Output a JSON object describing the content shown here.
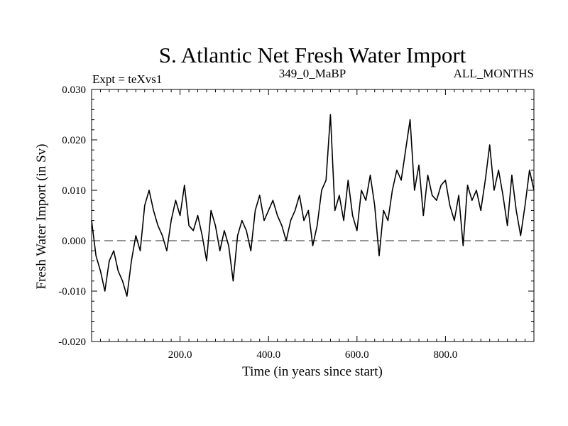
{
  "chart_data": {
    "type": "line",
    "title": "S. Atlantic Net Fresh Water Import",
    "subtitle_left": "Expt = teXvs1",
    "subtitle_center": "349_0_MaBP",
    "subtitle_right": "ALL_MONTHS",
    "xlabel": "Time (in years since start)",
    "ylabel": "Fresh Water Import (in Sv)",
    "xlim": [
      0,
      1000
    ],
    "ylim": [
      -0.02,
      0.03
    ],
    "x_ticks": [
      200,
      400,
      600,
      800
    ],
    "x_tick_labels": [
      "200.0",
      "400.0",
      "600.0",
      "800.0"
    ],
    "y_ticks": [
      -0.02,
      -0.01,
      0.0,
      0.01,
      0.02,
      0.03
    ],
    "y_tick_labels": [
      "-0.020",
      "-0.010",
      "0.000",
      "0.010",
      "0.020",
      "0.030"
    ],
    "reference_line": {
      "y": 0.0,
      "style": "dashed"
    },
    "series": [
      {
        "name": "Fresh Water Import",
        "x": [
          0,
          10,
          20,
          30,
          40,
          50,
          60,
          70,
          80,
          90,
          100,
          110,
          120,
          130,
          140,
          150,
          160,
          170,
          180,
          190,
          200,
          210,
          220,
          230,
          240,
          250,
          260,
          270,
          280,
          290,
          300,
          310,
          320,
          330,
          340,
          350,
          360,
          370,
          380,
          390,
          400,
          410,
          420,
          430,
          440,
          450,
          460,
          470,
          480,
          490,
          500,
          510,
          520,
          530,
          540,
          550,
          560,
          570,
          580,
          590,
          600,
          610,
          620,
          630,
          640,
          650,
          660,
          670,
          680,
          690,
          700,
          710,
          720,
          730,
          740,
          750,
          760,
          770,
          780,
          790,
          800,
          810,
          820,
          830,
          840,
          850,
          860,
          870,
          880,
          890,
          900,
          910,
          920,
          930,
          940,
          950,
          960,
          970,
          980,
          990,
          1000
        ],
        "values": [
          0.004,
          -0.003,
          -0.006,
          -0.01,
          -0.004,
          -0.002,
          -0.006,
          -0.008,
          -0.011,
          -0.004,
          0.001,
          -0.002,
          0.007,
          0.01,
          0.006,
          0.003,
          0.001,
          -0.002,
          0.004,
          0.008,
          0.005,
          0.011,
          0.003,
          0.002,
          0.005,
          0.001,
          -0.004,
          0.006,
          0.003,
          -0.002,
          0.002,
          -0.001,
          -0.008,
          0.001,
          0.004,
          0.002,
          -0.002,
          0.006,
          0.009,
          0.004,
          0.006,
          0.008,
          0.005,
          0.003,
          0.0,
          0.004,
          0.006,
          0.009,
          0.004,
          0.006,
          -0.001,
          0.003,
          0.01,
          0.012,
          0.025,
          0.006,
          0.009,
          0.004,
          0.012,
          0.005,
          0.002,
          0.01,
          0.008,
          0.013,
          0.007,
          -0.003,
          0.006,
          0.004,
          0.01,
          0.014,
          0.012,
          0.018,
          0.024,
          0.01,
          0.015,
          0.005,
          0.013,
          0.009,
          0.008,
          0.011,
          0.012,
          0.007,
          0.004,
          0.009,
          -0.001,
          0.011,
          0.008,
          0.01,
          0.006,
          0.012,
          0.019,
          0.01,
          0.014,
          0.009,
          0.003,
          0.013,
          0.006,
          0.001,
          0.007,
          0.014,
          0.01
        ]
      }
    ]
  }
}
